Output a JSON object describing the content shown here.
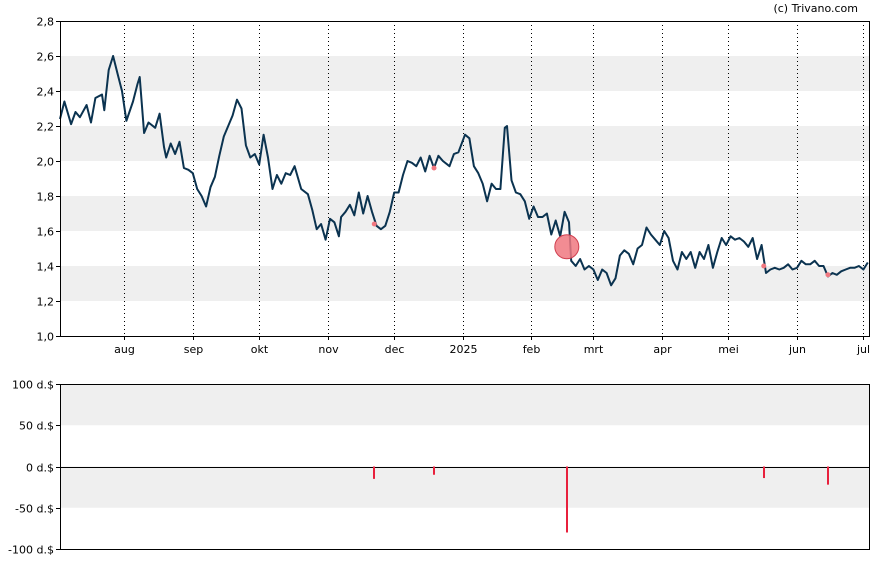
{
  "copyright": "(c) Trivano.com",
  "colors": {
    "price_line": "#0b3350",
    "band": "#efefef",
    "marker": "#f07880",
    "transaction_bar": "#e8203c"
  },
  "chart_data": [
    {
      "type": "line",
      "ylim": [
        1.0,
        2.8
      ],
      "y_ticks": [
        "1,0",
        "1,2",
        "1,4",
        "1,6",
        "1,8",
        "2,0",
        "2,2",
        "2,4",
        "2,6",
        "2,8"
      ],
      "y_tick_values": [
        1.0,
        1.2,
        1.4,
        1.6,
        1.8,
        2.0,
        2.2,
        2.4,
        2.6,
        2.8
      ],
      "x_range": [
        "2024-07-03",
        "2025-07-04"
      ],
      "month_labels": [
        {
          "date": "2024-08-01",
          "label": "aug"
        },
        {
          "date": "2024-09-01",
          "label": "sep"
        },
        {
          "date": "2024-10-01",
          "label": "okt"
        },
        {
          "date": "2024-11-01",
          "label": "nov"
        },
        {
          "date": "2024-12-01",
          "label": "dec"
        },
        {
          "date": "2025-01-01",
          "label": "2025"
        },
        {
          "date": "2025-02-01",
          "label": "feb"
        },
        {
          "date": "2025-03-01",
          "label": "mrt"
        },
        {
          "date": "2025-04-01",
          "label": "apr"
        },
        {
          "date": "2025-05-01",
          "label": "mei"
        },
        {
          "date": "2025-06-01",
          "label": "jun"
        },
        {
          "date": "2025-07-01",
          "label": "jul"
        }
      ],
      "grid": "vertical-dotted-at-months, alternating-horizontal-bands",
      "series": [
        {
          "points": [
            [
              "2024-07-03",
              2.24
            ],
            [
              "2024-07-05",
              2.34
            ],
            [
              "2024-07-08",
              2.21
            ],
            [
              "2024-07-10",
              2.28
            ],
            [
              "2024-07-12",
              2.25
            ],
            [
              "2024-07-15",
              2.32
            ],
            [
              "2024-07-17",
              2.22
            ],
            [
              "2024-07-19",
              2.36
            ],
            [
              "2024-07-22",
              2.38
            ],
            [
              "2024-07-23",
              2.29
            ],
            [
              "2024-07-25",
              2.52
            ],
            [
              "2024-07-27",
              2.6
            ],
            [
              "2024-07-29",
              2.5
            ],
            [
              "2024-07-31",
              2.4
            ],
            [
              "2024-08-02",
              2.23
            ],
            [
              "2024-08-05",
              2.34
            ],
            [
              "2024-08-07",
              2.44
            ],
            [
              "2024-08-08",
              2.48
            ],
            [
              "2024-08-10",
              2.16
            ],
            [
              "2024-08-12",
              2.22
            ],
            [
              "2024-08-15",
              2.19
            ],
            [
              "2024-08-17",
              2.27
            ],
            [
              "2024-08-19",
              2.08
            ],
            [
              "2024-08-20",
              2.02
            ],
            [
              "2024-08-22",
              2.1
            ],
            [
              "2024-08-24",
              2.04
            ],
            [
              "2024-08-26",
              2.11
            ],
            [
              "2024-08-28",
              1.96
            ],
            [
              "2024-08-30",
              1.95
            ],
            [
              "2024-09-01",
              1.93
            ],
            [
              "2024-09-03",
              1.84
            ],
            [
              "2024-09-05",
              1.8
            ],
            [
              "2024-09-07",
              1.74
            ],
            [
              "2024-09-09",
              1.85
            ],
            [
              "2024-09-11",
              1.91
            ],
            [
              "2024-09-13",
              2.03
            ],
            [
              "2024-09-15",
              2.14
            ],
            [
              "2024-09-17",
              2.2
            ],
            [
              "2024-09-19",
              2.26
            ],
            [
              "2024-09-21",
              2.35
            ],
            [
              "2024-09-23",
              2.3
            ],
            [
              "2024-09-25",
              2.09
            ],
            [
              "2024-09-27",
              2.02
            ],
            [
              "2024-09-29",
              2.04
            ],
            [
              "2024-10-01",
              1.98
            ],
            [
              "2024-10-03",
              2.15
            ],
            [
              "2024-10-05",
              2.02
            ],
            [
              "2024-10-07",
              1.84
            ],
            [
              "2024-10-09",
              1.92
            ],
            [
              "2024-10-11",
              1.87
            ],
            [
              "2024-10-13",
              1.93
            ],
            [
              "2024-10-15",
              1.92
            ],
            [
              "2024-10-17",
              1.97
            ],
            [
              "2024-10-20",
              1.84
            ],
            [
              "2024-10-23",
              1.81
            ],
            [
              "2024-10-25",
              1.72
            ],
            [
              "2024-10-27",
              1.61
            ],
            [
              "2024-10-29",
              1.64
            ],
            [
              "2024-10-31",
              1.55
            ],
            [
              "2024-11-02",
              1.67
            ],
            [
              "2024-11-04",
              1.65
            ],
            [
              "2024-11-06",
              1.57
            ],
            [
              "2024-11-07",
              1.68
            ],
            [
              "2024-11-09",
              1.71
            ],
            [
              "2024-11-11",
              1.75
            ],
            [
              "2024-11-13",
              1.69
            ],
            [
              "2024-11-15",
              1.82
            ],
            [
              "2024-11-17",
              1.7
            ],
            [
              "2024-11-19",
              1.8
            ],
            [
              "2024-11-21",
              1.71
            ],
            [
              "2024-11-23",
              1.63
            ],
            [
              "2024-11-25",
              1.61
            ],
            [
              "2024-11-27",
              1.63
            ],
            [
              "2024-11-29",
              1.71
            ],
            [
              "2024-12-01",
              1.82
            ],
            [
              "2024-12-03",
              1.82
            ],
            [
              "2024-12-05",
              1.92
            ],
            [
              "2024-12-07",
              2.0
            ],
            [
              "2024-12-09",
              1.99
            ],
            [
              "2024-12-11",
              1.97
            ],
            [
              "2024-12-13",
              2.02
            ],
            [
              "2024-12-15",
              1.94
            ],
            [
              "2024-12-17",
              2.03
            ],
            [
              "2024-12-19",
              1.96
            ],
            [
              "2024-12-21",
              2.03
            ],
            [
              "2024-12-23",
              2.0
            ],
            [
              "2024-12-26",
              1.97
            ],
            [
              "2024-12-28",
              2.04
            ],
            [
              "2024-12-30",
              2.05
            ],
            [
              "2025-01-02",
              2.15
            ],
            [
              "2025-01-04",
              2.13
            ],
            [
              "2025-01-06",
              1.97
            ],
            [
              "2025-01-08",
              1.93
            ],
            [
              "2025-01-10",
              1.87
            ],
            [
              "2025-01-12",
              1.77
            ],
            [
              "2025-01-14",
              1.87
            ],
            [
              "2025-01-16",
              1.84
            ],
            [
              "2025-01-18",
              1.84
            ],
            [
              "2025-01-20",
              2.19
            ],
            [
              "2025-01-21",
              2.2
            ],
            [
              "2025-01-23",
              1.89
            ],
            [
              "2025-01-25",
              1.82
            ],
            [
              "2025-01-27",
              1.81
            ],
            [
              "2025-01-29",
              1.77
            ],
            [
              "2025-01-31",
              1.67
            ],
            [
              "2025-02-02",
              1.74
            ],
            [
              "2025-02-04",
              1.68
            ],
            [
              "2025-02-06",
              1.68
            ],
            [
              "2025-02-08",
              1.7
            ],
            [
              "2025-02-10",
              1.58
            ],
            [
              "2025-02-12",
              1.66
            ],
            [
              "2025-02-14",
              1.57
            ],
            [
              "2025-02-16",
              1.71
            ],
            [
              "2025-02-18",
              1.65
            ],
            [
              "2025-02-19",
              1.43
            ],
            [
              "2025-02-21",
              1.4
            ],
            [
              "2025-02-23",
              1.44
            ],
            [
              "2025-02-25",
              1.38
            ],
            [
              "2025-02-27",
              1.4
            ],
            [
              "2025-03-01",
              1.38
            ],
            [
              "2025-03-03",
              1.32
            ],
            [
              "2025-03-05",
              1.38
            ],
            [
              "2025-03-07",
              1.36
            ],
            [
              "2025-03-09",
              1.29
            ],
            [
              "2025-03-11",
              1.33
            ],
            [
              "2025-03-13",
              1.46
            ],
            [
              "2025-03-15",
              1.49
            ],
            [
              "2025-03-17",
              1.47
            ],
            [
              "2025-03-19",
              1.41
            ],
            [
              "2025-03-21",
              1.5
            ],
            [
              "2025-03-23",
              1.52
            ],
            [
              "2025-03-25",
              1.62
            ],
            [
              "2025-03-27",
              1.58
            ],
            [
              "2025-03-29",
              1.55
            ],
            [
              "2025-03-31",
              1.52
            ],
            [
              "2025-04-02",
              1.6
            ],
            [
              "2025-04-04",
              1.56
            ],
            [
              "2025-04-06",
              1.43
            ],
            [
              "2025-04-08",
              1.38
            ],
            [
              "2025-04-10",
              1.48
            ],
            [
              "2025-04-12",
              1.44
            ],
            [
              "2025-04-14",
              1.48
            ],
            [
              "2025-04-16",
              1.39
            ],
            [
              "2025-04-18",
              1.48
            ],
            [
              "2025-04-20",
              1.44
            ],
            [
              "2025-04-22",
              1.52
            ],
            [
              "2025-04-24",
              1.39
            ],
            [
              "2025-04-26",
              1.48
            ],
            [
              "2025-04-28",
              1.56
            ],
            [
              "2025-04-30",
              1.52
            ],
            [
              "2025-05-02",
              1.57
            ],
            [
              "2025-05-04",
              1.55
            ],
            [
              "2025-05-06",
              1.56
            ],
            [
              "2025-05-08",
              1.54
            ],
            [
              "2025-05-10",
              1.51
            ],
            [
              "2025-05-12",
              1.56
            ],
            [
              "2025-05-14",
              1.44
            ],
            [
              "2025-05-16",
              1.52
            ],
            [
              "2025-05-18",
              1.36
            ],
            [
              "2025-05-20",
              1.38
            ],
            [
              "2025-05-22",
              1.39
            ],
            [
              "2025-05-24",
              1.38
            ],
            [
              "2025-05-26",
              1.39
            ],
            [
              "2025-05-28",
              1.41
            ],
            [
              "2025-05-30",
              1.38
            ],
            [
              "2025-06-01",
              1.39
            ],
            [
              "2025-06-03",
              1.43
            ],
            [
              "2025-06-05",
              1.41
            ],
            [
              "2025-06-07",
              1.41
            ],
            [
              "2025-06-09",
              1.43
            ],
            [
              "2025-06-11",
              1.4
            ],
            [
              "2025-06-13",
              1.4
            ],
            [
              "2025-06-15",
              1.34
            ],
            [
              "2025-06-17",
              1.36
            ],
            [
              "2025-06-19",
              1.35
            ],
            [
              "2025-06-21",
              1.37
            ],
            [
              "2025-06-23",
              1.38
            ],
            [
              "2025-06-25",
              1.39
            ],
            [
              "2025-06-27",
              1.39
            ],
            [
              "2025-06-29",
              1.4
            ],
            [
              "2025-07-01",
              1.38
            ],
            [
              "2025-07-03",
              1.42
            ]
          ]
        }
      ],
      "markers": [
        {
          "date": "2024-11-22",
          "y": 1.64,
          "size": "small"
        },
        {
          "date": "2024-12-19",
          "y": 1.96,
          "size": "small"
        },
        {
          "date": "2025-02-17",
          "y": 1.51,
          "size": "large"
        },
        {
          "date": "2025-05-17",
          "y": 1.4,
          "size": "small"
        },
        {
          "date": "2025-06-15",
          "y": 1.35,
          "size": "small"
        }
      ]
    },
    {
      "type": "bar",
      "ylim": [
        -100,
        100
      ],
      "y_ticks": [
        "-100 d.$",
        "-50 d.$",
        "0 d.$",
        "50 d.$",
        "100 d.$"
      ],
      "y_tick_values": [
        -100,
        -50,
        0,
        50,
        100
      ],
      "bars": [
        {
          "date": "2024-11-22",
          "value": -15
        },
        {
          "date": "2024-12-19",
          "value": -10
        },
        {
          "date": "2025-02-17",
          "value": -80
        },
        {
          "date": "2025-05-17",
          "value": -14
        },
        {
          "date": "2025-06-15",
          "value": -22
        }
      ]
    }
  ]
}
